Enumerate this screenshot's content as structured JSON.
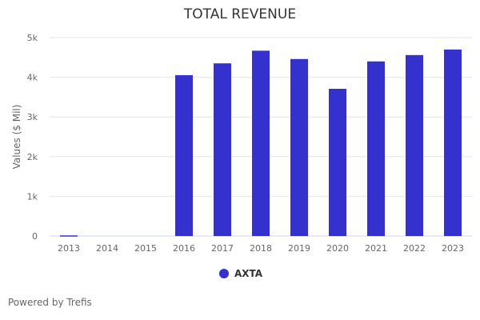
{
  "chart_data": {
    "type": "bar",
    "title": "TOTAL REVENUE",
    "xlabel": "",
    "ylabel": "Values ($ Mil)",
    "ylim": [
      0,
      5000
    ],
    "yticks": [
      0,
      1000,
      2000,
      3000,
      4000,
      5000
    ],
    "ytick_labels": [
      "0",
      "1k",
      "2k",
      "3k",
      "4k",
      "5k"
    ],
    "categories": [
      "2013",
      "2014",
      "2015",
      "2016",
      "2017",
      "2018",
      "2019",
      "2020",
      "2021",
      "2022",
      "2023"
    ],
    "series": [
      {
        "name": "AXTA",
        "color": "#3431cf",
        "values": [
          15,
          null,
          null,
          4054,
          4351,
          4670,
          4460,
          3710,
          4400,
          4560,
          4700
        ]
      }
    ],
    "grid": true,
    "legend_position": "bottom-center"
  },
  "footer": {
    "credit": "Powered by Trefis"
  }
}
